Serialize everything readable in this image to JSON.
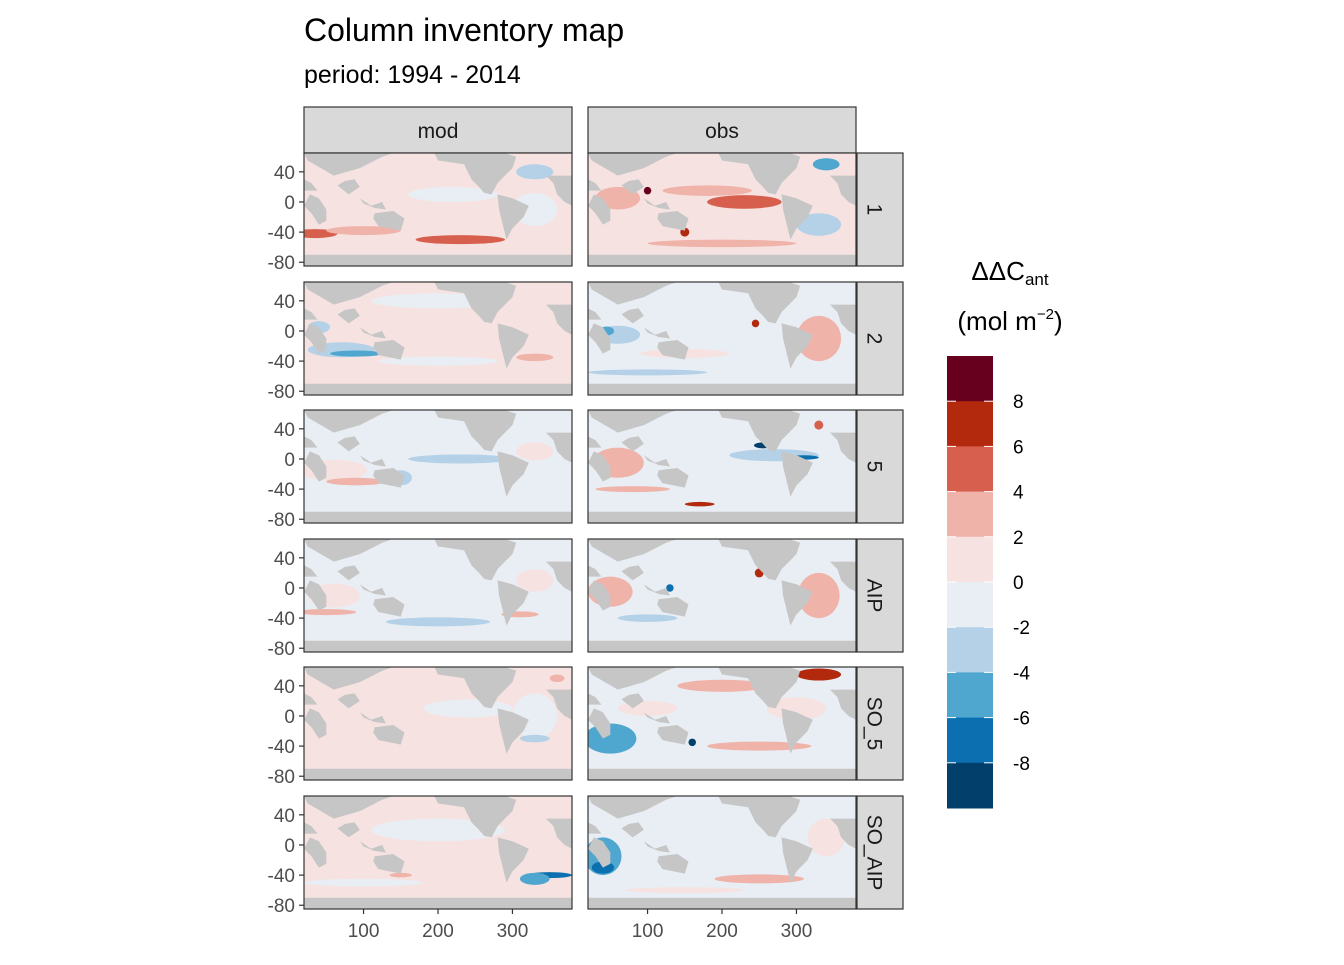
{
  "title": "Column inventory map",
  "subtitle": "period: 1994 - 2014",
  "legend": {
    "title_main": "ΔΔC",
    "title_sub": "ant",
    "unit_open": "(mol m",
    "unit_sup": "−2",
    "unit_close": ")",
    "labels": [
      "8",
      "6",
      "4",
      "2",
      "0",
      "-2",
      "-4",
      "-6",
      "-8"
    ],
    "colors": [
      "#67001F",
      "#B2290E",
      "#D6604D",
      "#F0B3AA",
      "#F6E3E1",
      "#E8EEF4",
      "#B4D1E8",
      "#4FA6CF",
      "#0B6FB0",
      "#033F6B"
    ],
    "breaks": [
      10,
      8,
      6,
      4,
      2,
      0,
      -2,
      -4,
      -6,
      -8,
      -10
    ]
  },
  "chart_data": {
    "type": "heatmap",
    "title": "Column inventory map",
    "subtitle": "period: 1994 - 2014",
    "facet_columns": [
      "mod",
      "obs"
    ],
    "facet_rows": [
      "1",
      "2",
      "5",
      "AIP",
      "SO_5",
      "SO_AIP"
    ],
    "x_ticks": [
      "100",
      "200",
      "300"
    ],
    "y_ticks": [
      "40",
      "0",
      "-40",
      "-80"
    ],
    "xlim": [
      20,
      380
    ],
    "ylim": [
      -85,
      65
    ],
    "land_color": "#C6C6C6",
    "strip_color": "#D9D9D9",
    "panels": [
      {
        "row": "1",
        "col": "mod",
        "ocean": "#F6E3E1",
        "blobs": [
          {
            "x": 35,
            "y": -42,
            "rx": 30,
            "ry": 6,
            "c": "#D6604D"
          },
          {
            "x": 230,
            "y": -50,
            "rx": 60,
            "ry": 6,
            "c": "#D6604D"
          },
          {
            "x": 100,
            "y": -38,
            "rx": 50,
            "ry": 6,
            "c": "#F0B3AA"
          },
          {
            "x": 220,
            "y": 10,
            "rx": 60,
            "ry": 10,
            "c": "#E8EEF4"
          },
          {
            "x": 330,
            "y": 40,
            "rx": 25,
            "ry": 10,
            "c": "#B4D1E8"
          },
          {
            "x": 330,
            "y": -10,
            "rx": 30,
            "ry": 22,
            "c": "#E8EEF4"
          }
        ]
      },
      {
        "row": "1",
        "col": "obs",
        "ocean": "#F6E3E1",
        "blobs": [
          {
            "x": 230,
            "y": 0,
            "rx": 50,
            "ry": 9,
            "c": "#D6604D"
          },
          {
            "x": 180,
            "y": 15,
            "rx": 60,
            "ry": 7,
            "c": "#F0B3AA"
          },
          {
            "x": 60,
            "y": 5,
            "rx": 30,
            "ry": 15,
            "c": "#F0B3AA"
          },
          {
            "x": 330,
            "y": -30,
            "rx": 30,
            "ry": 15,
            "c": "#B4D1E8"
          },
          {
            "x": 340,
            "y": 50,
            "rx": 18,
            "ry": 8,
            "c": "#4FA6CF"
          },
          {
            "x": 150,
            "y": -40,
            "rx": 6,
            "ry": 6,
            "c": "#B2290E"
          },
          {
            "x": 200,
            "y": -55,
            "rx": 100,
            "ry": 5,
            "c": "#F0B3AA"
          },
          {
            "x": 100,
            "y": 15,
            "rx": 5,
            "ry": 5,
            "c": "#67001F"
          }
        ]
      },
      {
        "row": "2",
        "col": "mod",
        "ocean": "#F6E3E1",
        "blobs": [
          {
            "x": 70,
            "y": -25,
            "rx": 45,
            "ry": 10,
            "c": "#B4D1E8"
          },
          {
            "x": 90,
            "y": -30,
            "rx": 35,
            "ry": 4,
            "c": "#4FA6CF"
          },
          {
            "x": 40,
            "y": 5,
            "rx": 15,
            "ry": 8,
            "c": "#B4D1E8"
          },
          {
            "x": 200,
            "y": -40,
            "rx": 80,
            "ry": 6,
            "c": "#E8EEF4"
          },
          {
            "x": 200,
            "y": 40,
            "rx": 90,
            "ry": 10,
            "c": "#E8EEF4"
          },
          {
            "x": 330,
            "y": -35,
            "rx": 25,
            "ry": 5,
            "c": "#F0B3AA"
          }
        ]
      },
      {
        "row": "2",
        "col": "obs",
        "ocean": "#E8EEF4",
        "blobs": [
          {
            "x": 60,
            "y": -5,
            "rx": 30,
            "ry": 12,
            "c": "#B4D1E8"
          },
          {
            "x": 45,
            "y": 0,
            "rx": 10,
            "ry": 6,
            "c": "#4FA6CF"
          },
          {
            "x": 330,
            "y": -10,
            "rx": 30,
            "ry": 30,
            "c": "#F0B3AA"
          },
          {
            "x": 245,
            "y": 10,
            "rx": 5,
            "ry": 5,
            "c": "#B2290E"
          },
          {
            "x": 150,
            "y": -30,
            "rx": 60,
            "ry": 6,
            "c": "#F6E3E1"
          },
          {
            "x": 100,
            "y": -55,
            "rx": 80,
            "ry": 4,
            "c": "#B4D1E8"
          }
        ]
      },
      {
        "row": "5",
        "col": "mod",
        "ocean": "#E8EEF4",
        "blobs": [
          {
            "x": 60,
            "y": -15,
            "rx": 45,
            "ry": 14,
            "c": "#F6E3E1"
          },
          {
            "x": 90,
            "y": -30,
            "rx": 40,
            "ry": 5,
            "c": "#F0B3AA"
          },
          {
            "x": 230,
            "y": 0,
            "rx": 70,
            "ry": 6,
            "c": "#B4D1E8"
          },
          {
            "x": 150,
            "y": -25,
            "rx": 15,
            "ry": 10,
            "c": "#B4D1E8"
          },
          {
            "x": 330,
            "y": 10,
            "rx": 25,
            "ry": 12,
            "c": "#F6E3E1"
          }
        ]
      },
      {
        "row": "5",
        "col": "obs",
        "ocean": "#E8EEF4",
        "blobs": [
          {
            "x": 60,
            "y": -5,
            "rx": 35,
            "ry": 20,
            "c": "#F0B3AA"
          },
          {
            "x": 270,
            "y": 5,
            "rx": 60,
            "ry": 8,
            "c": "#B4D1E8"
          },
          {
            "x": 310,
            "y": 2,
            "rx": 20,
            "ry": 3,
            "c": "#0B6FB0"
          },
          {
            "x": 255,
            "y": 18,
            "rx": 12,
            "ry": 4,
            "c": "#033F6B"
          },
          {
            "x": 170,
            "y": -60,
            "rx": 20,
            "ry": 3,
            "c": "#B2290E"
          },
          {
            "x": 80,
            "y": -40,
            "rx": 50,
            "ry": 4,
            "c": "#F0B3AA"
          },
          {
            "x": 330,
            "y": 45,
            "rx": 6,
            "ry": 6,
            "c": "#D6604D"
          }
        ]
      },
      {
        "row": "AIP",
        "col": "mod",
        "ocean": "#E8EEF4",
        "blobs": [
          {
            "x": 60,
            "y": -10,
            "rx": 35,
            "ry": 16,
            "c": "#F6E3E1"
          },
          {
            "x": 50,
            "y": -32,
            "rx": 40,
            "ry": 4,
            "c": "#F0B3AA"
          },
          {
            "x": 200,
            "y": -45,
            "rx": 70,
            "ry": 6,
            "c": "#B4D1E8"
          },
          {
            "x": 330,
            "y": 10,
            "rx": 25,
            "ry": 15,
            "c": "#F6E3E1"
          },
          {
            "x": 310,
            "y": -35,
            "rx": 25,
            "ry": 4,
            "c": "#F0B3AA"
          }
        ]
      },
      {
        "row": "AIP",
        "col": "obs",
        "ocean": "#E8EEF4",
        "blobs": [
          {
            "x": 50,
            "y": -5,
            "rx": 30,
            "ry": 20,
            "c": "#F0B3AA"
          },
          {
            "x": 330,
            "y": -10,
            "rx": 28,
            "ry": 30,
            "c": "#F0B3AA"
          },
          {
            "x": 250,
            "y": 20,
            "rx": 6,
            "ry": 6,
            "c": "#B2290E"
          },
          {
            "x": 100,
            "y": -40,
            "rx": 40,
            "ry": 5,
            "c": "#B4D1E8"
          },
          {
            "x": 130,
            "y": 0,
            "rx": 5,
            "ry": 5,
            "c": "#0B6FB0"
          }
        ]
      },
      {
        "row": "SO_5",
        "col": "mod",
        "ocean": "#F6E3E1",
        "blobs": [
          {
            "x": 240,
            "y": 10,
            "rx": 60,
            "ry": 12,
            "c": "#E8EEF4"
          },
          {
            "x": 330,
            "y": 0,
            "rx": 30,
            "ry": 30,
            "c": "#E8EEF4"
          },
          {
            "x": 330,
            "y": -30,
            "rx": 20,
            "ry": 5,
            "c": "#B4D1E8"
          },
          {
            "x": 100,
            "y": -38,
            "rx": 60,
            "ry": 4,
            "c": "#F6E3E1"
          },
          {
            "x": 360,
            "y": 50,
            "rx": 10,
            "ry": 5,
            "c": "#F0B3AA"
          }
        ]
      },
      {
        "row": "SO_5",
        "col": "obs",
        "ocean": "#E8EEF4",
        "blobs": [
          {
            "x": 50,
            "y": -30,
            "rx": 35,
            "ry": 20,
            "c": "#4FA6CF"
          },
          {
            "x": 200,
            "y": 40,
            "rx": 60,
            "ry": 8,
            "c": "#F0B3AA"
          },
          {
            "x": 330,
            "y": 55,
            "rx": 30,
            "ry": 8,
            "c": "#B2290E"
          },
          {
            "x": 160,
            "y": -35,
            "rx": 5,
            "ry": 5,
            "c": "#033F6B"
          },
          {
            "x": 250,
            "y": -40,
            "rx": 70,
            "ry": 6,
            "c": "#F0B3AA"
          },
          {
            "x": 100,
            "y": 10,
            "rx": 40,
            "ry": 10,
            "c": "#F6E3E1"
          },
          {
            "x": 300,
            "y": 10,
            "rx": 40,
            "ry": 15,
            "c": "#F6E3E1"
          }
        ]
      },
      {
        "row": "SO_AIP",
        "col": "mod",
        "ocean": "#F6E3E1",
        "blobs": [
          {
            "x": 200,
            "y": 20,
            "rx": 90,
            "ry": 15,
            "c": "#E8EEF4"
          },
          {
            "x": 350,
            "y": -40,
            "rx": 30,
            "ry": 4,
            "c": "#0B6FB0"
          },
          {
            "x": 330,
            "y": -45,
            "rx": 20,
            "ry": 8,
            "c": "#4FA6CF"
          },
          {
            "x": 100,
            "y": -50,
            "rx": 80,
            "ry": 5,
            "c": "#E8EEF4"
          },
          {
            "x": 150,
            "y": -40,
            "rx": 15,
            "ry": 3,
            "c": "#F0B3AA"
          }
        ]
      },
      {
        "row": "SO_AIP",
        "col": "obs",
        "ocean": "#E8EEF4",
        "blobs": [
          {
            "x": 40,
            "y": -15,
            "rx": 25,
            "ry": 25,
            "c": "#4FA6CF"
          },
          {
            "x": 40,
            "y": -30,
            "rx": 15,
            "ry": 8,
            "c": "#0B6FB0"
          },
          {
            "x": 250,
            "y": -45,
            "rx": 60,
            "ry": 6,
            "c": "#F0B3AA"
          },
          {
            "x": 150,
            "y": -60,
            "rx": 80,
            "ry": 4,
            "c": "#F6E3E1"
          },
          {
            "x": 340,
            "y": 10,
            "rx": 25,
            "ry": 25,
            "c": "#F6E3E1"
          }
        ]
      }
    ]
  }
}
